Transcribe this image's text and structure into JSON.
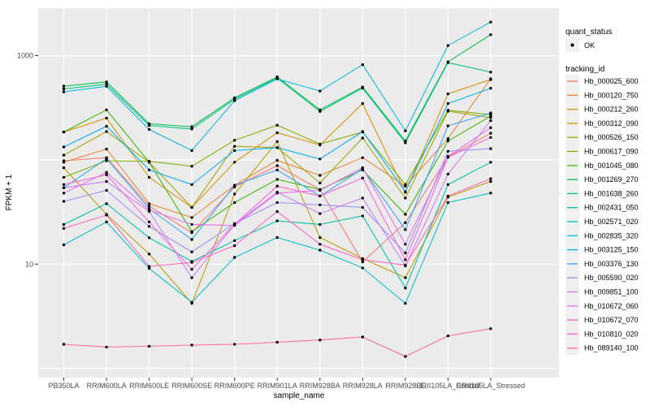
{
  "figure": {
    "legend_quant": {
      "title": "quant_status",
      "items": [
        {
          "label": "OK",
          "marker": "point-icon"
        }
      ]
    },
    "legend_tracking": {
      "title": "tracking_id"
    }
  },
  "chart_data": {
    "type": "line",
    "title": "",
    "xlabel": "sample_name",
    "ylabel": "FPKM + 1",
    "y_scale": "log10",
    "y_axis_ticks": [
      1000,
      10
    ],
    "y_gridlines": [
      1,
      10,
      100,
      1000
    ],
    "ylim_approx": [
      1,
      2500
    ],
    "grid": "on",
    "legend_position": "right",
    "panel_background": "#EBEBEB",
    "gridline_color": "#FFFFFF",
    "point_color": "#000000",
    "axis_text_color": "#4D4D4D",
    "tick_color": "#333333",
    "legend_key_background": "#F0F0F0",
    "categories": [
      "PB350LA",
      "RRIM600LA",
      "RRIM600LE",
      "RRIM600SE",
      "RRIM600PE",
      "RRIM901LA",
      "RRIM928BA",
      "RRIM928LA",
      "RRIM928LE",
      "RRII105LA_Control",
      "RRII105LA_Stressed"
    ],
    "series": [
      {
        "name": "Hb_000025_600",
        "color": "#F8766D",
        "values": [
          98,
          105,
          36,
          20,
          55,
          88,
          52,
          10.5,
          25,
          107,
          180
        ]
      },
      {
        "name": "Hb_000120_750",
        "color": "#EA8331",
        "values": [
          95,
          127,
          38,
          28,
          57,
          99,
          71,
          105,
          56,
          160,
          600
        ]
      },
      {
        "name": "Hb_000212_260",
        "color": "#D89000",
        "values": [
          185,
          252,
          68,
          35,
          95,
          182,
          139,
          347,
          49,
          430,
          590
        ]
      },
      {
        "name": "Hb_000312_090",
        "color": "#C09B00",
        "values": [
          84,
          30,
          12.5,
          4.2,
          47,
          150,
          18,
          11.3,
          7.4,
          44,
          62
        ]
      },
      {
        "name": "Hb_000526_150",
        "color": "#A3A500",
        "values": [
          111,
          187,
          95,
          35,
          135,
          131,
          60,
          162,
          43,
          293,
          255
        ]
      },
      {
        "name": "Hb_000617_090",
        "color": "#7CAE00",
        "values": [
          68,
          98,
          97,
          87,
          154,
          215,
          142,
          185,
          58,
          300,
          272
        ]
      },
      {
        "name": "Hb_001045_080",
        "color": "#39B600",
        "values": [
          185,
          302,
          95,
          20.5,
          39,
          65,
          52,
          80,
          30,
          152,
          262
        ]
      },
      {
        "name": "Hb_001269_270",
        "color": "#00BB4E",
        "values": [
          510,
          560,
          222,
          208,
          394,
          625,
          302,
          500,
          152,
          872,
          1590
        ]
      },
      {
        "name": "Hb_001638_260",
        "color": "#00BF7D",
        "values": [
          480,
          532,
          214,
          198,
          382,
          610,
          292,
          488,
          146,
          858,
          695
        ]
      },
      {
        "name": "Hb_002431_050",
        "color": "#00C1A3",
        "values": [
          24,
          38,
          17.9,
          10.6,
          16.8,
          26,
          24,
          29,
          5.9,
          58,
          95
        ]
      },
      {
        "name": "Hb_002571_020",
        "color": "#00BFC4",
        "values": [
          15.3,
          25.4,
          9.1,
          4.3,
          11.6,
          18,
          13.6,
          9.2,
          4.2,
          39,
          48
        ]
      },
      {
        "name": "Hb_002835_320",
        "color": "#00BAE0",
        "values": [
          450,
          508,
          196,
          123,
          370,
          598,
          458,
          820,
          190,
          1250,
          2100
        ]
      },
      {
        "name": "Hb_003125_150",
        "color": "#00B0F6",
        "values": [
          133,
          210,
          80,
          58,
          123,
          131,
          102,
          187,
          49.5,
          347,
          487
        ]
      },
      {
        "name": "Hb_003376_130",
        "color": "#35A2FF",
        "values": [
          54,
          103,
          34,
          17.2,
          57,
          80,
          45,
          82,
          21.4,
          212,
          282
        ]
      },
      {
        "name": "Hb_005590_020",
        "color": "#9590FF",
        "values": [
          40,
          51,
          23,
          13.1,
          24.5,
          39,
          37,
          35,
          12.8,
          121,
          128
        ]
      },
      {
        "name": "Hb_009851_100",
        "color": "#C77CFF",
        "values": [
          54,
          62,
          32,
          7.4,
          24,
          49,
          30.5,
          43,
          9.6,
          73,
          238
        ]
      },
      {
        "name": "Hb_010672_060",
        "color": "#E76BF3",
        "values": [
          48,
          76,
          33,
          24,
          23.5,
          48,
          51,
          84,
          15.5,
          108,
          204
        ]
      },
      {
        "name": "Hb_010672_070",
        "color": "#FA62DB",
        "values": [
          58,
          72,
          25.4,
          8.9,
          24,
          56,
          45,
          67,
          11,
          106,
          164
        ]
      },
      {
        "name": "Hb_010810_020",
        "color": "#FF62BC",
        "values": [
          22,
          29.5,
          9.5,
          10.4,
          15,
          32,
          15.5,
          11,
          9.8,
          45,
          66
        ]
      },
      {
        "name": "Hb_089140_100",
        "color": "#FF6A98",
        "values": [
          1.7,
          1.6,
          1.63,
          1.67,
          1.7,
          1.78,
          1.87,
          2.0,
          1.3,
          2.05,
          2.4
        ]
      }
    ]
  }
}
